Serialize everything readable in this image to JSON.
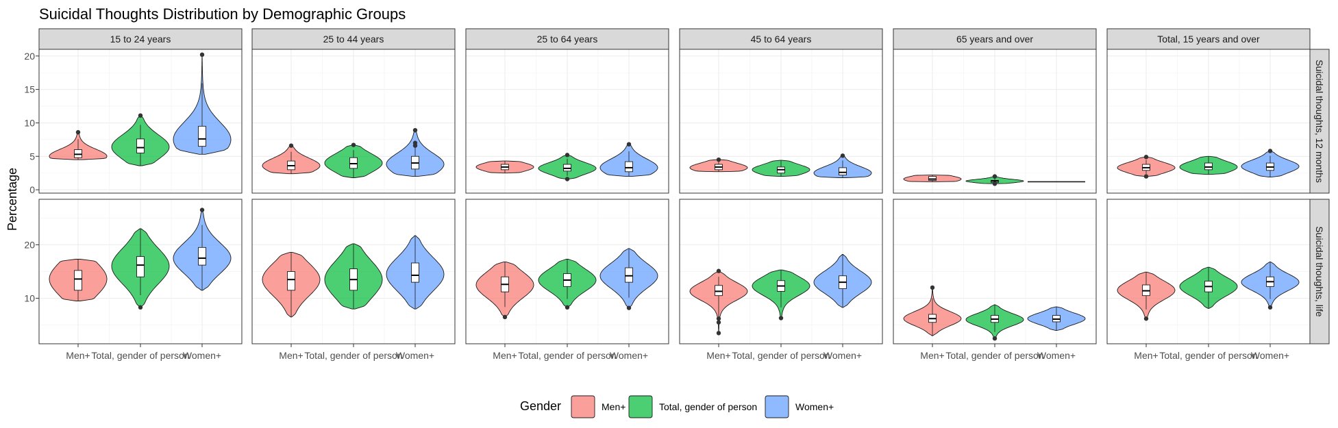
{
  "chart_data": {
    "type": "violin",
    "title": "Suicidal Thoughts Distribution by Demographic Groups",
    "xlabel": "",
    "ylabel": "Percentage",
    "categories": [
      "Men+",
      "Total, gender of person",
      "Women+"
    ],
    "colors": {
      "Men+": "#F8766D",
      "Total, gender of person": "#00BA38",
      "Women+": "#619CFF"
    },
    "legend": {
      "title": "Gender",
      "position": "bottom",
      "items": [
        "Men+",
        "Total, gender of person",
        "Women+"
      ]
    },
    "grid": true,
    "columns": [
      "15 to 24 years",
      "25 to 44 years",
      "25 to 64 years",
      "45 to 64 years",
      "65 years and over",
      "Total, 15 years and over"
    ],
    "rows": [
      {
        "label": "Suicidal thoughts, 12 months",
        "ylim": [
          -0.5,
          21
        ],
        "ticks": [
          0,
          5,
          10,
          15,
          20
        ]
      },
      {
        "label": "Suicidal thoughts, life",
        "ylim": [
          1.5,
          28.5
        ],
        "ticks": [
          10,
          20
        ]
      }
    ],
    "panels": [
      [
        [
          {
            "min": 4.5,
            "q1": 4.8,
            "median": 5.3,
            "q3": 6.0,
            "max": 8.6,
            "mode": 5.0,
            "outliers": [
              8.6
            ]
          },
          {
            "min": 3.6,
            "q1": 5.5,
            "median": 6.3,
            "q3": 7.6,
            "max": 11.1,
            "mode": 6.4,
            "outliers": [
              11.1
            ]
          },
          {
            "min": 5.3,
            "q1": 6.5,
            "median": 7.6,
            "q3": 9.5,
            "max": 20.2,
            "mode": 7.5,
            "outliers": [
              20.2
            ]
          }
        ],
        [
          {
            "min": 2.4,
            "q1": 3.0,
            "median": 3.6,
            "q3": 4.3,
            "max": 6.6,
            "mode": 3.6,
            "outliers": [
              6.6
            ]
          },
          {
            "min": 1.8,
            "q1": 3.2,
            "median": 3.9,
            "q3": 4.8,
            "max": 6.7,
            "mode": 4.0,
            "outliers": [
              6.7
            ]
          },
          {
            "min": 2.0,
            "q1": 3.1,
            "median": 4.0,
            "q3": 5.0,
            "max": 8.9,
            "mode": 3.8,
            "outliers": [
              6.6,
              7.0,
              8.9
            ]
          }
        ],
        [
          {
            "min": 2.5,
            "q1": 3.0,
            "median": 3.4,
            "q3": 3.8,
            "max": 4.3,
            "mode": 3.4,
            "outliers": []
          },
          {
            "min": 1.6,
            "q1": 2.8,
            "median": 3.2,
            "q3": 3.8,
            "max": 5.2,
            "mode": 3.2,
            "outliers": [
              1.6,
              5.2
            ]
          },
          {
            "min": 2.0,
            "q1": 2.7,
            "median": 3.3,
            "q3": 4.2,
            "max": 6.8,
            "mode": 3.3,
            "outliers": [
              6.8
            ]
          }
        ],
        [
          {
            "min": 2.7,
            "q1": 3.0,
            "median": 3.4,
            "q3": 3.8,
            "max": 4.5,
            "mode": 3.3,
            "outliers": [
              4.5
            ]
          },
          {
            "min": 2.0,
            "q1": 2.5,
            "median": 3.0,
            "q3": 3.4,
            "max": 4.4,
            "mode": 3.0,
            "outliers": []
          },
          {
            "min": 1.8,
            "q1": 2.2,
            "median": 2.6,
            "q3": 3.3,
            "max": 5.1,
            "mode": 2.5,
            "outliers": [
              5.1
            ]
          }
        ],
        [
          {
            "min": 1.2,
            "q1": 1.4,
            "median": 1.6,
            "q3": 2.0,
            "max": 2.2,
            "mode": 1.6,
            "outliers": []
          },
          {
            "min": 0.9,
            "q1": 1.1,
            "median": 1.3,
            "q3": 1.4,
            "max": 2.0,
            "mode": 1.3,
            "outliers": [
              0.9,
              2.0
            ]
          },
          {
            "min": 1.2,
            "q1": 1.2,
            "median": 1.2,
            "q3": 1.2,
            "max": 1.2,
            "mode": 1.2,
            "outliers": []
          }
        ],
        [
          {
            "min": 2.0,
            "q1": 2.9,
            "median": 3.3,
            "q3": 3.8,
            "max": 4.9,
            "mode": 3.3,
            "outliers": [
              2.0,
              4.9
            ]
          },
          {
            "min": 2.3,
            "q1": 3.0,
            "median": 3.4,
            "q3": 4.0,
            "max": 5.0,
            "mode": 3.4,
            "outliers": []
          },
          {
            "min": 1.9,
            "q1": 2.9,
            "median": 3.4,
            "q3": 4.0,
            "max": 5.8,
            "mode": 3.5,
            "outliers": [
              5.8
            ]
          }
        ]
      ],
      [
        [
          {
            "min": 9.5,
            "q1": 11.5,
            "median": 13.6,
            "q3": 15.2,
            "max": 17.3,
            "mode": 13.6,
            "outliers": []
          },
          {
            "min": 8.3,
            "q1": 14.0,
            "median": 16.2,
            "q3": 17.8,
            "max": 23.0,
            "mode": 16.0,
            "outliers": [
              8.3
            ]
          },
          {
            "min": 11.5,
            "q1": 16.2,
            "median": 17.5,
            "q3": 19.5,
            "max": 26.5,
            "mode": 17.5,
            "outliers": [
              26.5
            ]
          }
        ],
        [
          {
            "min": 6.5,
            "q1": 11.5,
            "median": 13.5,
            "q3": 15.0,
            "max": 18.6,
            "mode": 13.5,
            "outliers": []
          },
          {
            "min": 8.0,
            "q1": 11.5,
            "median": 13.5,
            "q3": 15.5,
            "max": 20.2,
            "mode": 13.5,
            "outliers": []
          },
          {
            "min": 8.0,
            "q1": 13.0,
            "median": 14.3,
            "q3": 16.6,
            "max": 21.7,
            "mode": 14.5,
            "outliers": []
          }
        ],
        [
          {
            "min": 6.5,
            "q1": 11.2,
            "median": 12.6,
            "q3": 14.0,
            "max": 16.8,
            "mode": 12.5,
            "outliers": [
              6.5
            ]
          },
          {
            "min": 8.3,
            "q1": 12.2,
            "median": 13.4,
            "q3": 14.6,
            "max": 17.3,
            "mode": 13.4,
            "outliers": [
              8.3
            ]
          },
          {
            "min": 8.2,
            "q1": 13.0,
            "median": 14.2,
            "q3": 15.7,
            "max": 19.3,
            "mode": 14.2,
            "outliers": [
              8.2
            ]
          }
        ],
        [
          {
            "min": 3.5,
            "q1": 10.5,
            "median": 11.3,
            "q3": 12.4,
            "max": 15.1,
            "mode": 11.3,
            "outliers": [
              3.5,
              5.5,
              6.2,
              15.1
            ]
          },
          {
            "min": 6.3,
            "q1": 11.3,
            "median": 12.3,
            "q3": 13.3,
            "max": 15.3,
            "mode": 12.3,
            "outliers": [
              6.3
            ]
          },
          {
            "min": 8.3,
            "q1": 11.8,
            "median": 13.0,
            "q3": 14.2,
            "max": 18.2,
            "mode": 13.0,
            "outliers": []
          }
        ],
        [
          {
            "min": 3.0,
            "q1": 5.5,
            "median": 6.2,
            "q3": 7.0,
            "max": 12.0,
            "mode": 6.2,
            "outliers": [
              12.0
            ]
          },
          {
            "min": 2.5,
            "q1": 5.5,
            "median": 6.1,
            "q3": 6.8,
            "max": 8.8,
            "mode": 6.0,
            "outliers": [
              2.5
            ]
          },
          {
            "min": 4.0,
            "q1": 5.6,
            "median": 6.1,
            "q3": 6.8,
            "max": 8.4,
            "mode": 6.2,
            "outliers": []
          }
        ],
        [
          {
            "min": 6.2,
            "q1": 10.5,
            "median": 11.4,
            "q3": 12.5,
            "max": 14.9,
            "mode": 11.5,
            "outliers": [
              6.2
            ]
          },
          {
            "min": 8.1,
            "q1": 11.2,
            "median": 12.2,
            "q3": 13.2,
            "max": 15.8,
            "mode": 12.2,
            "outliers": []
          },
          {
            "min": 8.3,
            "q1": 12.2,
            "median": 13.1,
            "q3": 14.0,
            "max": 16.8,
            "mode": 13.0,
            "outliers": [
              8.3
            ]
          }
        ]
      ]
    ]
  }
}
